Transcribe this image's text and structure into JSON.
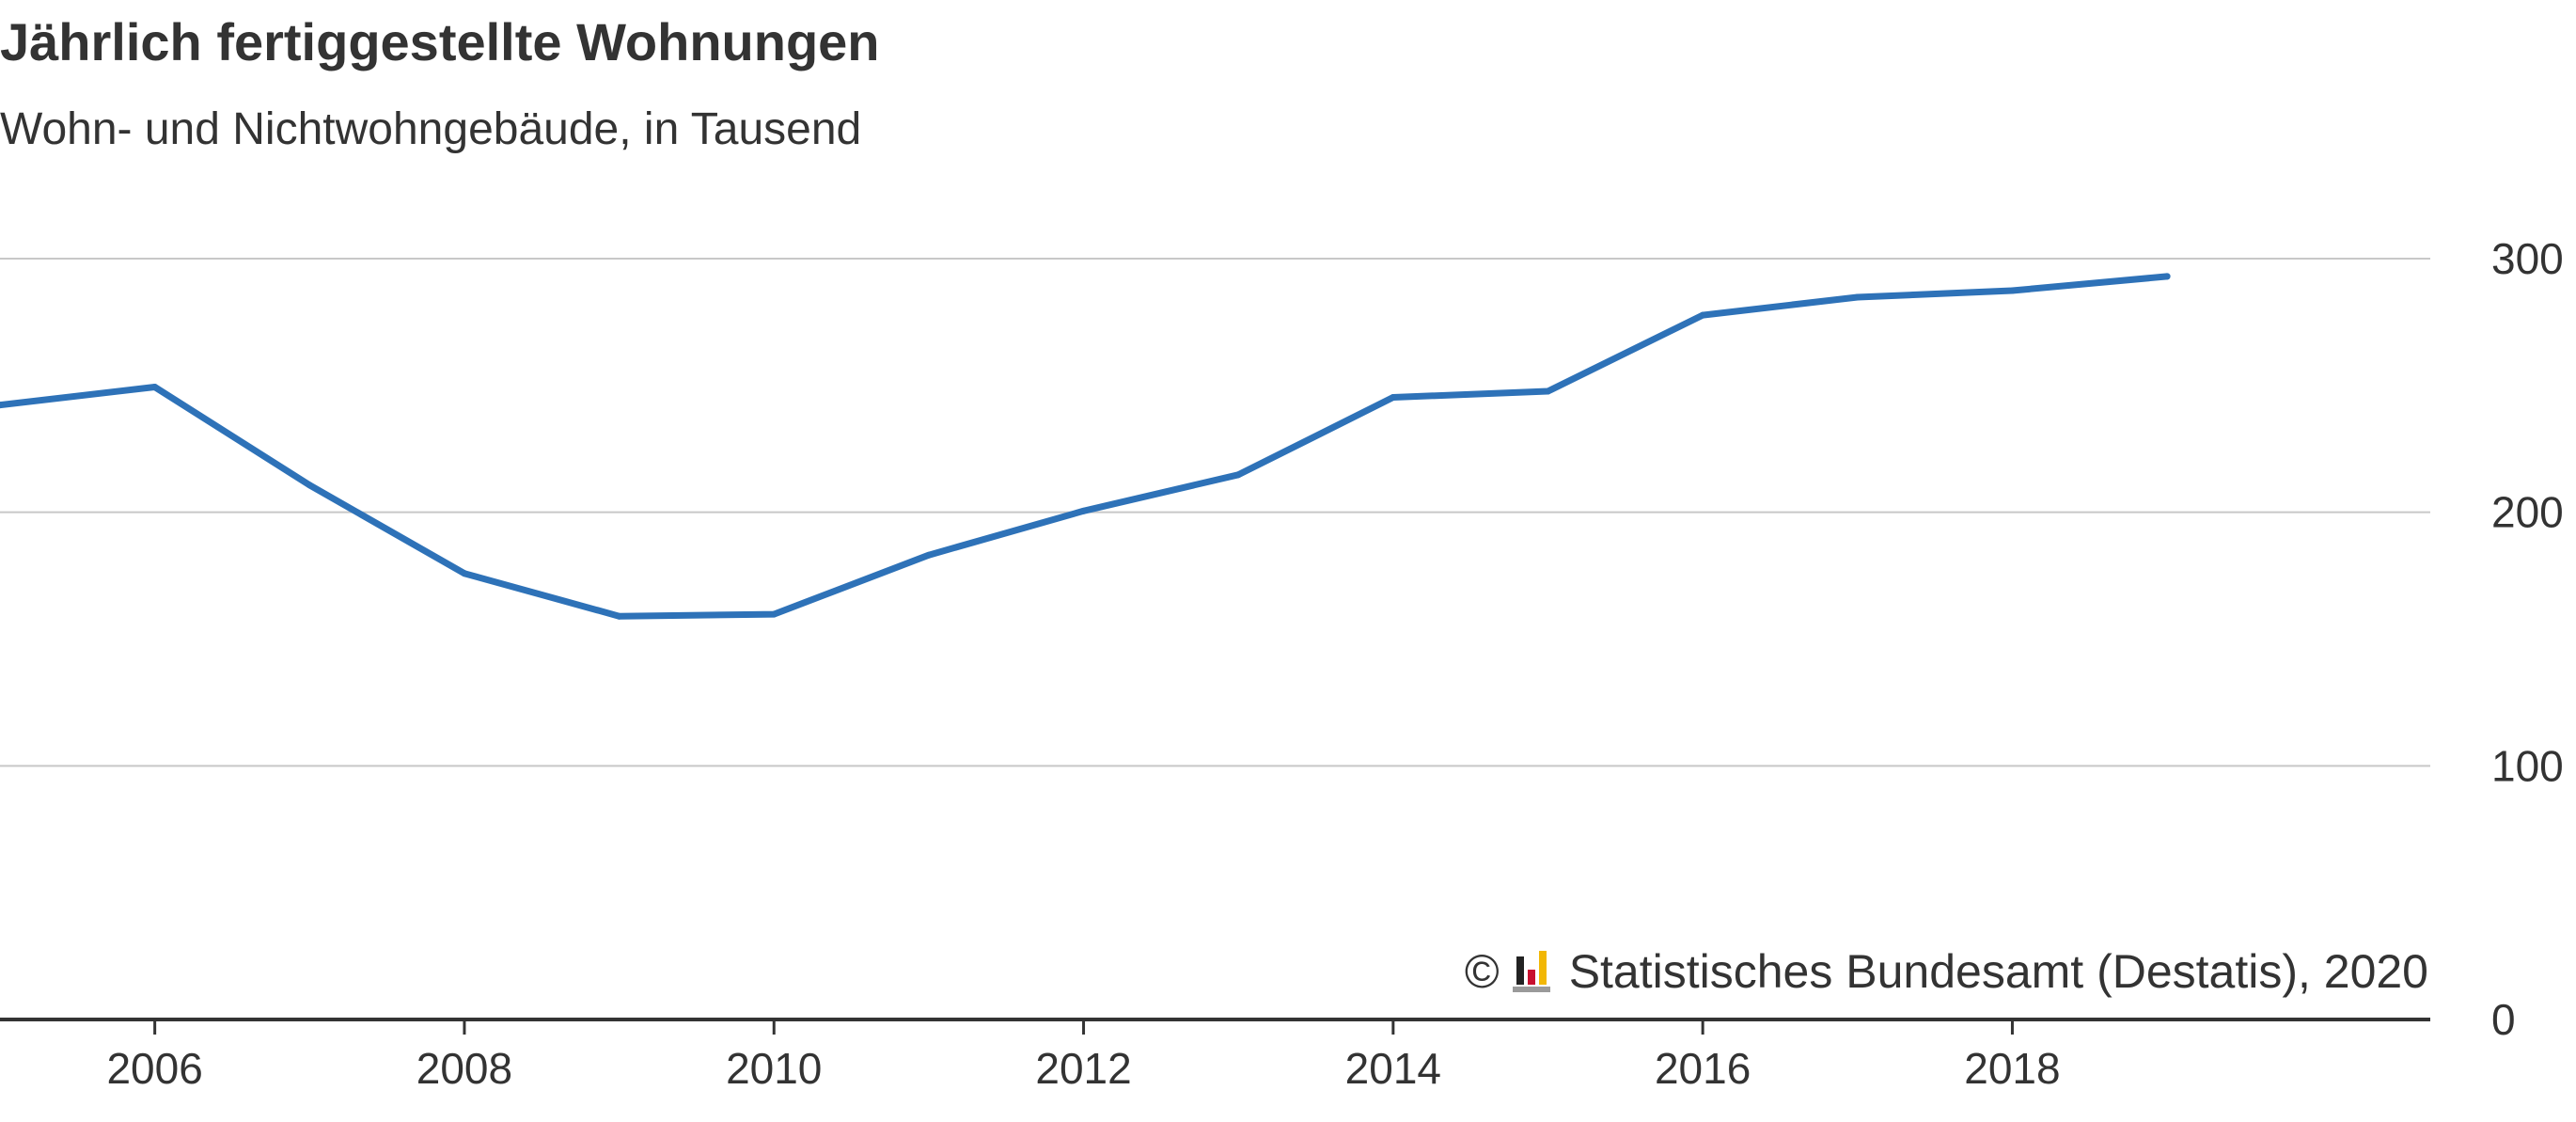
{
  "chart_data": {
    "type": "line",
    "title": "Jährlich fertiggestellte Wohnungen",
    "subtitle": "Wohn- und Nichtwohngebäude, in Tausend",
    "x": [
      2005,
      2006,
      2007,
      2008,
      2009,
      2010,
      2011,
      2012,
      2013,
      2014,
      2015,
      2016,
      2017,
      2018,
      2019
    ],
    "series": [
      {
        "values": [
          242.3,
          249.4,
          210.7,
          175.9,
          159.0,
          159.8,
          183.1,
          200.5,
          214.8,
          245.3,
          247.7,
          277.7,
          284.8,
          287.4,
          293.0
        ]
      }
    ],
    "xlim": [
      2005,
      2020.7
    ],
    "ylim": [
      0,
      300
    ],
    "x_ticks": [
      2006,
      2008,
      2010,
      2012,
      2014,
      2016,
      2018
    ],
    "y_ticks": [
      0,
      100,
      200,
      300
    ],
    "y_axis_position": "right",
    "grid": "horizontal",
    "colors": {
      "line": "#2e72b8",
      "grid": "#c8c8c8",
      "axis": "#333333",
      "text": "#333333"
    }
  },
  "credit": {
    "copyright_symbol": "©",
    "logo_icon": "destatis-logo-icon",
    "text": "Statistisches Bundesamt (Destatis), 2020"
  }
}
